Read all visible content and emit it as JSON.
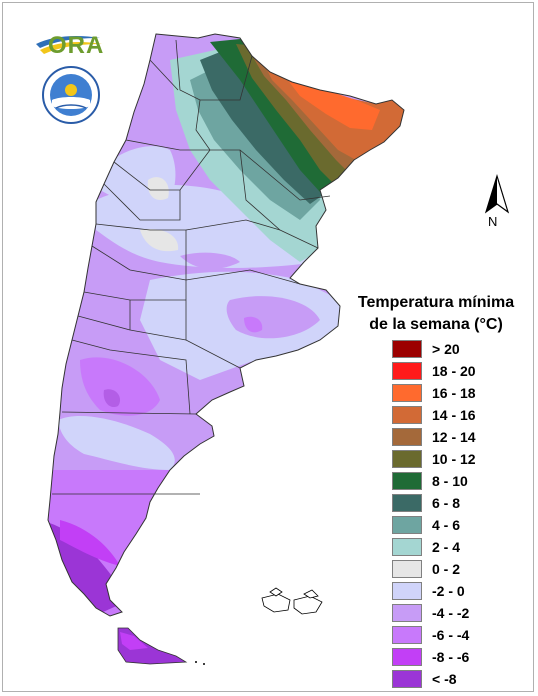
{
  "map": {
    "title_line1": "Temperatura mínima",
    "title_line2": "de la semana (°C)",
    "north_label": "N",
    "logo_ora_text": "ORA",
    "legend": [
      {
        "label": "> 20",
        "color": "#9c0000"
      },
      {
        "label": "18 - 20",
        "color": "#ff1a1a"
      },
      {
        "label": "16 - 18",
        "color": "#ff6a2e"
      },
      {
        "label": "14 - 16",
        "color": "#d26a36"
      },
      {
        "label": "12 - 14",
        "color": "#a4693a"
      },
      {
        "label": "10 - 12",
        "color": "#6a6a2e"
      },
      {
        "label": "8 - 10",
        "color": "#1f6b36"
      },
      {
        "label": "6 - 8",
        "color": "#3b6a66"
      },
      {
        "label": "4 - 6",
        "color": "#6ea5a1"
      },
      {
        "label": "2 - 4",
        "color": "#a4d6d2"
      },
      {
        "label": "0 - 2",
        "color": "#e6e6e6"
      },
      {
        "label": "-2 - 0",
        "color": "#d0d4fa"
      },
      {
        "label": "-4 - -2",
        "color": "#c79cf6"
      },
      {
        "label": "-6 - -4",
        "color": "#c879fb"
      },
      {
        "label": "-8 - -6",
        "color": "#c23ff6"
      },
      {
        "label": "< -8",
        "color": "#9b35d6"
      }
    ]
  }
}
